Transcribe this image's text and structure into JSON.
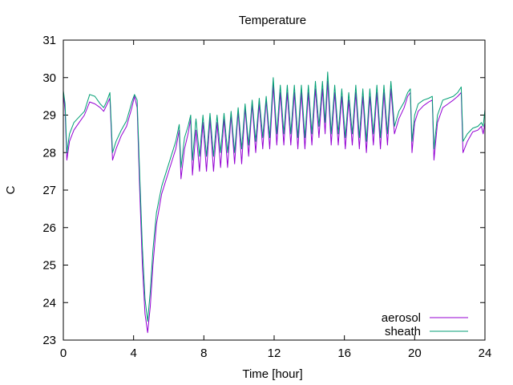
{
  "chart_data": {
    "type": "line",
    "title": "Temperature",
    "xlabel": "Time [hour]",
    "ylabel": "C",
    "xlim": [
      0,
      24
    ],
    "ylim": [
      23,
      31
    ],
    "xticks": [
      0,
      4,
      8,
      12,
      16,
      20,
      24
    ],
    "yticks": [
      23,
      24,
      25,
      26,
      27,
      28,
      29,
      30,
      31
    ],
    "grid": false,
    "legend_position": "bottom-right",
    "series": [
      {
        "name": "aerosol",
        "color": "#9400d3",
        "points": [
          [
            0.0,
            29.6
          ],
          [
            0.1,
            29.1
          ],
          [
            0.2,
            27.8
          ],
          [
            0.35,
            28.3
          ],
          [
            0.6,
            28.6
          ],
          [
            0.9,
            28.8
          ],
          [
            1.2,
            29.0
          ],
          [
            1.5,
            29.35
          ],
          [
            1.8,
            29.3
          ],
          [
            2.1,
            29.2
          ],
          [
            2.3,
            29.1
          ],
          [
            2.5,
            29.3
          ],
          [
            2.65,
            29.45
          ],
          [
            2.8,
            27.8
          ],
          [
            3.0,
            28.1
          ],
          [
            3.3,
            28.45
          ],
          [
            3.6,
            28.7
          ],
          [
            3.9,
            29.2
          ],
          [
            4.05,
            29.5
          ],
          [
            4.2,
            29.2
          ],
          [
            4.35,
            27.0
          ],
          [
            4.5,
            25.0
          ],
          [
            4.65,
            23.7
          ],
          [
            4.8,
            23.2
          ],
          [
            4.95,
            23.9
          ],
          [
            5.1,
            25.0
          ],
          [
            5.3,
            26.1
          ],
          [
            5.6,
            26.9
          ],
          [
            6.0,
            27.5
          ],
          [
            6.4,
            28.1
          ],
          [
            6.6,
            28.6
          ],
          [
            6.7,
            27.3
          ],
          [
            6.9,
            28.1
          ],
          [
            7.1,
            28.5
          ],
          [
            7.25,
            28.9
          ],
          [
            7.35,
            27.4
          ],
          [
            7.55,
            28.6
          ],
          [
            7.75,
            27.5
          ],
          [
            7.95,
            28.8
          ],
          [
            8.15,
            27.5
          ],
          [
            8.35,
            28.9
          ],
          [
            8.55,
            27.5
          ],
          [
            8.75,
            28.8
          ],
          [
            8.95,
            27.6
          ],
          [
            9.15,
            28.9
          ],
          [
            9.35,
            27.6
          ],
          [
            9.55,
            29.0
          ],
          [
            9.75,
            27.7
          ],
          [
            9.95,
            29.1
          ],
          [
            10.15,
            27.7
          ],
          [
            10.35,
            29.2
          ],
          [
            10.55,
            27.9
          ],
          [
            10.75,
            29.3
          ],
          [
            10.95,
            28.0
          ],
          [
            11.15,
            29.3
          ],
          [
            11.35,
            28.1
          ],
          [
            11.55,
            29.4
          ],
          [
            11.75,
            28.1
          ],
          [
            11.95,
            29.8
          ],
          [
            12.15,
            28.2
          ],
          [
            12.35,
            29.6
          ],
          [
            12.55,
            28.2
          ],
          [
            12.75,
            29.6
          ],
          [
            12.95,
            28.2
          ],
          [
            13.15,
            29.6
          ],
          [
            13.35,
            28.1
          ],
          [
            13.55,
            29.6
          ],
          [
            13.75,
            28.1
          ],
          [
            13.95,
            29.6
          ],
          [
            14.15,
            28.2
          ],
          [
            14.35,
            29.7
          ],
          [
            14.55,
            28.4
          ],
          [
            14.75,
            29.7
          ],
          [
            14.9,
            28.5
          ],
          [
            15.05,
            29.9
          ],
          [
            15.25,
            28.2
          ],
          [
            15.45,
            29.6
          ],
          [
            15.65,
            28.2
          ],
          [
            15.85,
            29.5
          ],
          [
            16.05,
            28.1
          ],
          [
            16.25,
            29.4
          ],
          [
            16.45,
            28.2
          ],
          [
            16.65,
            29.6
          ],
          [
            16.85,
            28.1
          ],
          [
            17.05,
            29.5
          ],
          [
            17.25,
            28.0
          ],
          [
            17.45,
            29.5
          ],
          [
            17.65,
            28.2
          ],
          [
            17.85,
            29.6
          ],
          [
            18.05,
            28.1
          ],
          [
            18.25,
            29.6
          ],
          [
            18.45,
            28.2
          ],
          [
            18.65,
            29.7
          ],
          [
            18.85,
            28.5
          ],
          [
            19.1,
            28.9
          ],
          [
            19.4,
            29.2
          ],
          [
            19.6,
            29.5
          ],
          [
            19.75,
            29.6
          ],
          [
            19.85,
            28.0
          ],
          [
            20.0,
            28.8
          ],
          [
            20.2,
            29.1
          ],
          [
            20.5,
            29.25
          ],
          [
            20.8,
            29.35
          ],
          [
            21.0,
            29.4
          ],
          [
            21.1,
            27.8
          ],
          [
            21.3,
            28.8
          ],
          [
            21.6,
            29.2
          ],
          [
            21.9,
            29.3
          ],
          [
            22.2,
            29.4
          ],
          [
            22.45,
            29.5
          ],
          [
            22.65,
            29.6
          ],
          [
            22.75,
            28.0
          ],
          [
            23.0,
            28.3
          ],
          [
            23.3,
            28.55
          ],
          [
            23.6,
            28.6
          ],
          [
            23.8,
            28.7
          ],
          [
            23.9,
            28.5
          ],
          [
            24.0,
            28.8
          ]
        ]
      },
      {
        "name": "sheath",
        "color": "#009e73",
        "points": [
          [
            0.0,
            29.65
          ],
          [
            0.1,
            29.3
          ],
          [
            0.2,
            28.0
          ],
          [
            0.35,
            28.5
          ],
          [
            0.6,
            28.8
          ],
          [
            0.9,
            28.95
          ],
          [
            1.2,
            29.1
          ],
          [
            1.5,
            29.55
          ],
          [
            1.8,
            29.5
          ],
          [
            2.1,
            29.3
          ],
          [
            2.3,
            29.2
          ],
          [
            2.5,
            29.4
          ],
          [
            2.65,
            29.6
          ],
          [
            2.8,
            28.0
          ],
          [
            3.0,
            28.3
          ],
          [
            3.3,
            28.6
          ],
          [
            3.6,
            28.85
          ],
          [
            3.9,
            29.35
          ],
          [
            4.05,
            29.55
          ],
          [
            4.2,
            29.4
          ],
          [
            4.35,
            27.4
          ],
          [
            4.5,
            25.5
          ],
          [
            4.65,
            24.1
          ],
          [
            4.8,
            23.5
          ],
          [
            4.95,
            24.3
          ],
          [
            5.1,
            25.4
          ],
          [
            5.3,
            26.4
          ],
          [
            5.6,
            27.1
          ],
          [
            6.0,
            27.7
          ],
          [
            6.4,
            28.3
          ],
          [
            6.6,
            28.75
          ],
          [
            6.7,
            27.6
          ],
          [
            6.9,
            28.4
          ],
          [
            7.1,
            28.7
          ],
          [
            7.25,
            29.0
          ],
          [
            7.35,
            27.8
          ],
          [
            7.55,
            28.9
          ],
          [
            7.75,
            27.9
          ],
          [
            7.95,
            29.0
          ],
          [
            8.15,
            27.9
          ],
          [
            8.35,
            29.05
          ],
          [
            8.55,
            27.9
          ],
          [
            8.75,
            29.0
          ],
          [
            8.95,
            28.0
          ],
          [
            9.15,
            29.05
          ],
          [
            9.35,
            28.0
          ],
          [
            9.55,
            29.1
          ],
          [
            9.75,
            28.0
          ],
          [
            9.95,
            29.2
          ],
          [
            10.15,
            28.1
          ],
          [
            10.35,
            29.3
          ],
          [
            10.55,
            28.2
          ],
          [
            10.75,
            29.4
          ],
          [
            10.95,
            28.3
          ],
          [
            11.15,
            29.45
          ],
          [
            11.35,
            28.4
          ],
          [
            11.55,
            29.5
          ],
          [
            11.75,
            28.4
          ],
          [
            11.95,
            30.0
          ],
          [
            12.15,
            28.5
          ],
          [
            12.35,
            29.8
          ],
          [
            12.55,
            28.5
          ],
          [
            12.75,
            29.8
          ],
          [
            12.95,
            28.5
          ],
          [
            13.15,
            29.8
          ],
          [
            13.35,
            28.4
          ],
          [
            13.55,
            29.8
          ],
          [
            13.75,
            28.4
          ],
          [
            13.95,
            29.8
          ],
          [
            14.15,
            28.5
          ],
          [
            14.35,
            29.9
          ],
          [
            14.55,
            28.7
          ],
          [
            14.75,
            29.9
          ],
          [
            14.9,
            28.8
          ],
          [
            15.05,
            30.15
          ],
          [
            15.25,
            28.5
          ],
          [
            15.45,
            29.8
          ],
          [
            15.65,
            28.5
          ],
          [
            15.85,
            29.7
          ],
          [
            16.05,
            28.4
          ],
          [
            16.25,
            29.6
          ],
          [
            16.45,
            28.5
          ],
          [
            16.65,
            29.8
          ],
          [
            16.85,
            28.4
          ],
          [
            17.05,
            29.7
          ],
          [
            17.25,
            28.3
          ],
          [
            17.45,
            29.7
          ],
          [
            17.65,
            28.5
          ],
          [
            17.85,
            29.8
          ],
          [
            18.05,
            28.4
          ],
          [
            18.25,
            29.8
          ],
          [
            18.45,
            28.5
          ],
          [
            18.65,
            29.9
          ],
          [
            18.85,
            28.7
          ],
          [
            19.1,
            29.1
          ],
          [
            19.4,
            29.35
          ],
          [
            19.6,
            29.6
          ],
          [
            19.75,
            29.7
          ],
          [
            19.85,
            28.3
          ],
          [
            20.0,
            29.0
          ],
          [
            20.2,
            29.3
          ],
          [
            20.5,
            29.4
          ],
          [
            20.8,
            29.45
          ],
          [
            21.0,
            29.5
          ],
          [
            21.1,
            28.1
          ],
          [
            21.3,
            29.0
          ],
          [
            21.6,
            29.4
          ],
          [
            21.9,
            29.45
          ],
          [
            22.2,
            29.5
          ],
          [
            22.45,
            29.6
          ],
          [
            22.65,
            29.75
          ],
          [
            22.75,
            28.3
          ],
          [
            23.0,
            28.5
          ],
          [
            23.3,
            28.65
          ],
          [
            23.6,
            28.7
          ],
          [
            23.8,
            28.8
          ],
          [
            23.9,
            28.7
          ],
          [
            24.0,
            29.15
          ]
        ]
      }
    ]
  }
}
